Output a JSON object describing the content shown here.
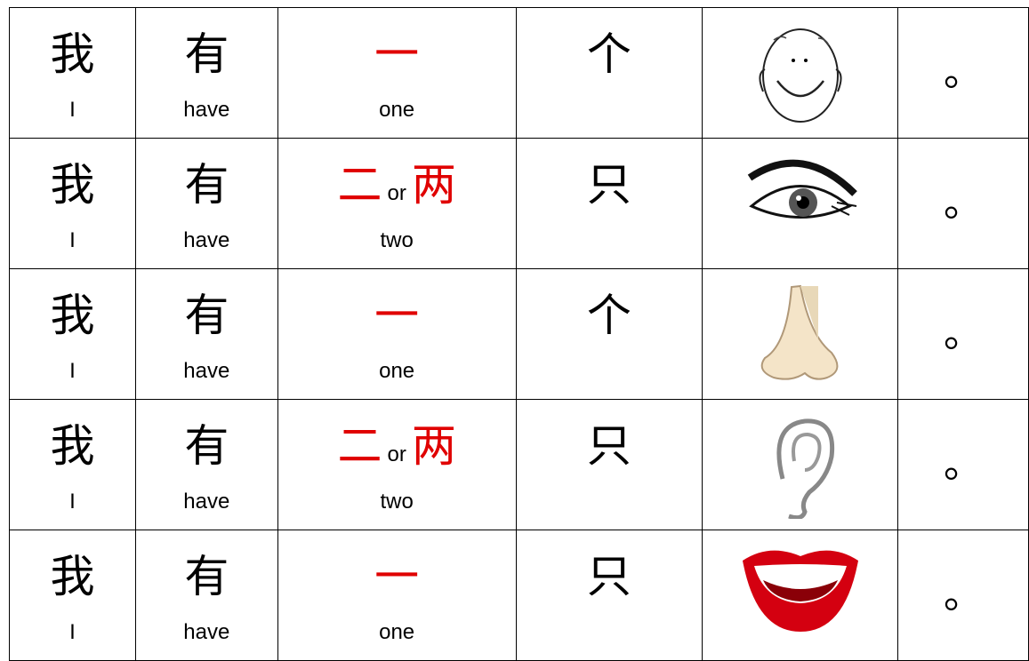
{
  "table": {
    "rows": [
      {
        "subject": "我",
        "subject_en": "I",
        "verb": "有",
        "verb_en": "have",
        "number": "一",
        "number_en": "one",
        "measure": "个",
        "period": "。"
      },
      {
        "subject": "我",
        "subject_en": "I",
        "verb": "有",
        "verb_en": "have",
        "number": "二",
        "number_or": "or",
        "number_alt": "两",
        "number_en": "two",
        "measure": "只",
        "period": "。"
      },
      {
        "subject": "我",
        "subject_en": "I",
        "verb": "有",
        "verb_en": "have",
        "number": "一",
        "number_en": "one",
        "measure": "个",
        "period": "。"
      },
      {
        "subject": "我",
        "subject_en": "I",
        "verb": "有",
        "verb_en": "have",
        "number": "二",
        "number_or": "or",
        "number_alt": "两",
        "number_en": "two",
        "measure": "只",
        "period": "。"
      },
      {
        "subject": "我",
        "subject_en": "I",
        "verb": "有",
        "verb_en": "have",
        "number": "一",
        "number_en": "one",
        "measure": "只",
        "period": "。"
      }
    ]
  }
}
